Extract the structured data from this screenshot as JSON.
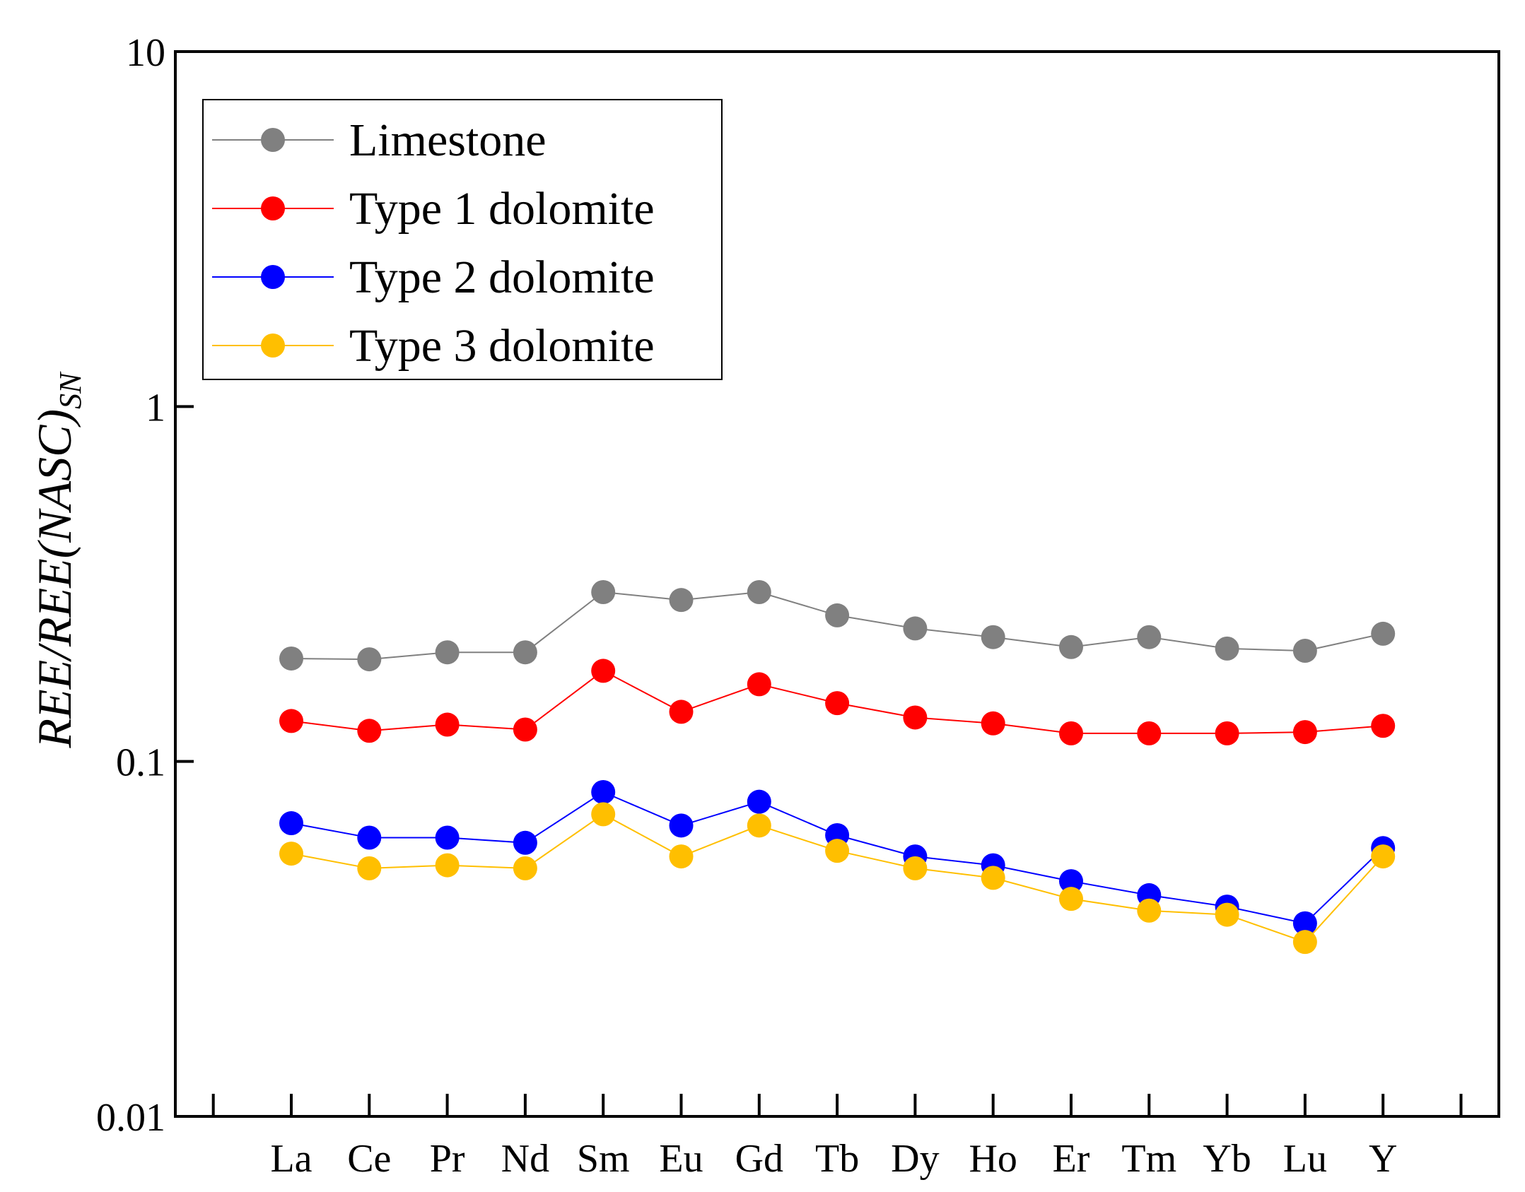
{
  "chart_data": {
    "type": "line",
    "title": "",
    "xlabel": "",
    "ylabel": "REE/REE(NASC)",
    "ylabel_subscript": "SN",
    "yscale": "log",
    "ylim": [
      0.01,
      10
    ],
    "yticks": [
      {
        "value": 0.01,
        "label": "0.01"
      },
      {
        "value": 0.1,
        "label": "0.1"
      },
      {
        "value": 1,
        "label": "1"
      },
      {
        "value": 10,
        "label": "10"
      }
    ],
    "categories": [
      "La",
      "Ce",
      "Pr",
      "Nd",
      "Sm",
      "Eu",
      "Gd",
      "Tb",
      "Dy",
      "Ho",
      "Er",
      "Tm",
      "Yb",
      "Lu",
      "Y"
    ],
    "grid": false,
    "legend_position": "top-left",
    "series": [
      {
        "name": "Limestone",
        "color": "#808080",
        "values": [
          0.195,
          0.194,
          0.203,
          0.203,
          0.3,
          0.285,
          0.3,
          0.258,
          0.237,
          0.224,
          0.21,
          0.224,
          0.208,
          0.205,
          0.229
        ]
      },
      {
        "name": "Type 1 dolomite",
        "color": "#ff0000",
        "values": [
          0.13,
          0.122,
          0.127,
          0.123,
          0.18,
          0.138,
          0.165,
          0.146,
          0.133,
          0.128,
          0.12,
          0.12,
          0.12,
          0.121,
          0.126
        ]
      },
      {
        "name": "Type 2 dolomite",
        "color": "#0000ff",
        "values": [
          0.067,
          0.061,
          0.061,
          0.059,
          0.082,
          0.066,
          0.077,
          0.062,
          0.054,
          0.051,
          0.046,
          0.042,
          0.039,
          0.035,
          0.057
        ]
      },
      {
        "name": "Type 3 dolomite",
        "color": "#ffbf00",
        "values": [
          0.055,
          0.05,
          0.051,
          0.05,
          0.071,
          0.054,
          0.066,
          0.056,
          0.05,
          0.047,
          0.041,
          0.038,
          0.037,
          0.031,
          0.054
        ]
      }
    ]
  }
}
